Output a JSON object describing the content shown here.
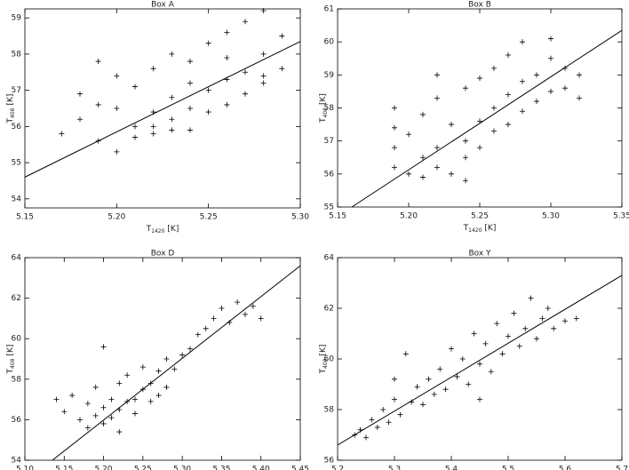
{
  "chart_data": [
    {
      "type": "scatter",
      "title": "Box A",
      "xlabel": {
        "text": "T",
        "sub": "1420",
        "unit": "[K]"
      },
      "ylabel": {
        "text": "T",
        "sub": "408",
        "unit": "[K]"
      },
      "xlim": [
        5.15,
        5.3
      ],
      "ylim": [
        53.75,
        59.25
      ],
      "xticks": [
        5.15,
        {
          "value": 5.2,
          "label": "5.20"
        },
        5.25,
        {
          "value": 5.3,
          "label": "5.30"
        }
      ],
      "yticks": [
        54,
        55,
        56,
        57,
        58,
        59
      ],
      "points": {
        "x": [
          5.17,
          5.18,
          5.19,
          5.19,
          5.2,
          5.2,
          5.21,
          5.21,
          5.21,
          5.22,
          5.22,
          5.22,
          5.23,
          5.23,
          5.23,
          5.24,
          5.24,
          5.24,
          5.25,
          5.25,
          5.25,
          5.26,
          5.26,
          5.26,
          5.27,
          5.27,
          5.27,
          5.28,
          5.28,
          5.28,
          5.29,
          5.29,
          5.18,
          5.2,
          5.22,
          5.24,
          5.26,
          5.28,
          5.19,
          5.23
        ],
        "values": [
          55.8,
          56.2,
          55.6,
          57.8,
          55.3,
          56.5,
          56.0,
          57.1,
          55.7,
          56.4,
          57.6,
          55.8,
          56.8,
          56.2,
          58.0,
          56.5,
          57.2,
          55.9,
          57.0,
          56.4,
          58.3,
          57.3,
          56.6,
          58.6,
          57.5,
          58.9,
          56.9,
          58.0,
          57.2,
          59.2,
          57.6,
          58.5,
          56.9,
          57.4,
          56.0,
          57.8,
          57.9,
          57.4,
          56.6,
          55.9
        ]
      },
      "fit_line": {
        "x": [
          5.15,
          5.3
        ],
        "values": [
          54.6,
          58.35
        ]
      }
    },
    {
      "type": "scatter",
      "title": "Box B",
      "xlabel": {
        "text": "T",
        "sub": "1420",
        "unit": "[K]"
      },
      "ylabel": {
        "text": "T",
        "sub": "408",
        "unit": "[K]"
      },
      "xlim": [
        5.15,
        5.35
      ],
      "ylim": [
        55,
        61
      ],
      "xticks": [
        5.15,
        {
          "value": 5.2,
          "label": "5.20"
        },
        5.25,
        {
          "value": 5.3,
          "label": "5.30"
        },
        5.35
      ],
      "yticks": [
        55,
        56,
        57,
        58,
        59,
        60,
        61
      ],
      "points": {
        "x": [
          5.19,
          5.19,
          5.19,
          5.19,
          5.2,
          5.2,
          5.21,
          5.21,
          5.21,
          5.22,
          5.22,
          5.22,
          5.23,
          5.23,
          5.24,
          5.24,
          5.24,
          5.25,
          5.25,
          5.25,
          5.26,
          5.26,
          5.26,
          5.27,
          5.27,
          5.27,
          5.28,
          5.28,
          5.28,
          5.29,
          5.29,
          5.3,
          5.3,
          5.3,
          5.31,
          5.31,
          5.32,
          5.32,
          5.22,
          5.24
        ],
        "values": [
          56.2,
          56.8,
          57.4,
          58.0,
          56.0,
          57.2,
          56.5,
          55.9,
          57.8,
          56.8,
          58.3,
          56.2,
          57.5,
          56.0,
          57.0,
          58.6,
          56.5,
          57.6,
          58.9,
          56.8,
          58.0,
          57.3,
          59.2,
          58.4,
          57.5,
          59.6,
          58.8,
          57.9,
          60.0,
          59.0,
          58.2,
          59.5,
          58.5,
          60.1,
          59.2,
          58.6,
          59.0,
          58.3,
          59.0,
          55.8
        ]
      },
      "fit_line": {
        "x": [
          5.16,
          5.35
        ],
        "values": [
          55.0,
          60.35
        ]
      }
    },
    {
      "type": "scatter",
      "title": "Box D",
      "xlabel": {
        "text": "T",
        "sub": "1420",
        "unit": "[K]"
      },
      "ylabel": {
        "text": "T",
        "sub": "408",
        "unit": "[K]"
      },
      "xlim": [
        5.1,
        5.45
      ],
      "ylim": [
        54,
        64
      ],
      "xticks": [
        {
          "value": 5.1,
          "label": "5.10"
        },
        5.15,
        {
          "value": 5.2,
          "label": "5.20"
        },
        5.25,
        {
          "value": 5.3,
          "label": "5.30"
        },
        5.35,
        {
          "value": 5.4,
          "label": "5.40"
        },
        5.45
      ],
      "yticks": [
        54,
        56,
        58,
        60,
        62,
        64
      ],
      "points": {
        "x": [
          5.14,
          5.15,
          5.16,
          5.17,
          5.18,
          5.18,
          5.19,
          5.19,
          5.2,
          5.2,
          5.21,
          5.21,
          5.22,
          5.22,
          5.23,
          5.23,
          5.24,
          5.24,
          5.25,
          5.25,
          5.26,
          5.26,
          5.27,
          5.27,
          5.28,
          5.28,
          5.29,
          5.3,
          5.31,
          5.32,
          5.33,
          5.34,
          5.35,
          5.36,
          5.37,
          5.38,
          5.39,
          5.4,
          5.2,
          5.22
        ],
        "values": [
          57.0,
          56.4,
          57.2,
          56.0,
          55.6,
          56.8,
          56.2,
          57.6,
          55.8,
          56.6,
          57.0,
          56.1,
          56.5,
          57.8,
          56.9,
          58.2,
          57.0,
          56.3,
          57.5,
          58.6,
          57.8,
          56.9,
          58.4,
          57.2,
          59.0,
          57.6,
          58.5,
          59.2,
          59.5,
          60.2,
          60.5,
          61.0,
          61.5,
          60.8,
          61.8,
          61.2,
          61.6,
          61.0,
          59.6,
          55.4
        ]
      },
      "fit_line": {
        "x": [
          5.135,
          5.45
        ],
        "values": [
          54,
          63.6
        ]
      }
    },
    {
      "type": "scatter",
      "title": "Box Y",
      "xlabel": {
        "text": "T",
        "sub": "1420",
        "unit": "[K]"
      },
      "ylabel": {
        "text": "T",
        "sub": "408",
        "unit": "[K]"
      },
      "xlim": [
        5.2,
        5.7
      ],
      "ylim": [
        56,
        64
      ],
      "xticks": [
        5.2,
        5.3,
        5.4,
        5.5,
        5.6,
        5.7
      ],
      "yticks": [
        56,
        58,
        60,
        62,
        64
      ],
      "points": {
        "x": [
          5.23,
          5.24,
          5.25,
          5.26,
          5.27,
          5.28,
          5.29,
          5.3,
          5.31,
          5.32,
          5.33,
          5.34,
          5.35,
          5.36,
          5.37,
          5.38,
          5.39,
          5.4,
          5.41,
          5.42,
          5.43,
          5.44,
          5.45,
          5.46,
          5.47,
          5.48,
          5.49,
          5.5,
          5.51,
          5.52,
          5.53,
          5.54,
          5.55,
          5.56,
          5.57,
          5.58,
          5.6,
          5.62,
          5.3,
          5.45
        ],
        "values": [
          57.0,
          57.2,
          56.9,
          57.6,
          57.3,
          58.0,
          57.5,
          58.4,
          57.8,
          60.2,
          58.3,
          58.9,
          58.2,
          59.2,
          58.6,
          59.6,
          58.8,
          60.4,
          59.3,
          60.0,
          59.0,
          61.0,
          59.8,
          60.6,
          59.5,
          61.4,
          60.2,
          60.9,
          61.8,
          60.5,
          61.2,
          62.4,
          60.8,
          61.6,
          62.0,
          61.2,
          61.5,
          61.6,
          59.2,
          58.4
        ]
      },
      "fit_line": {
        "x": [
          5.2,
          5.7
        ],
        "values": [
          56.6,
          63.3
        ]
      }
    }
  ]
}
